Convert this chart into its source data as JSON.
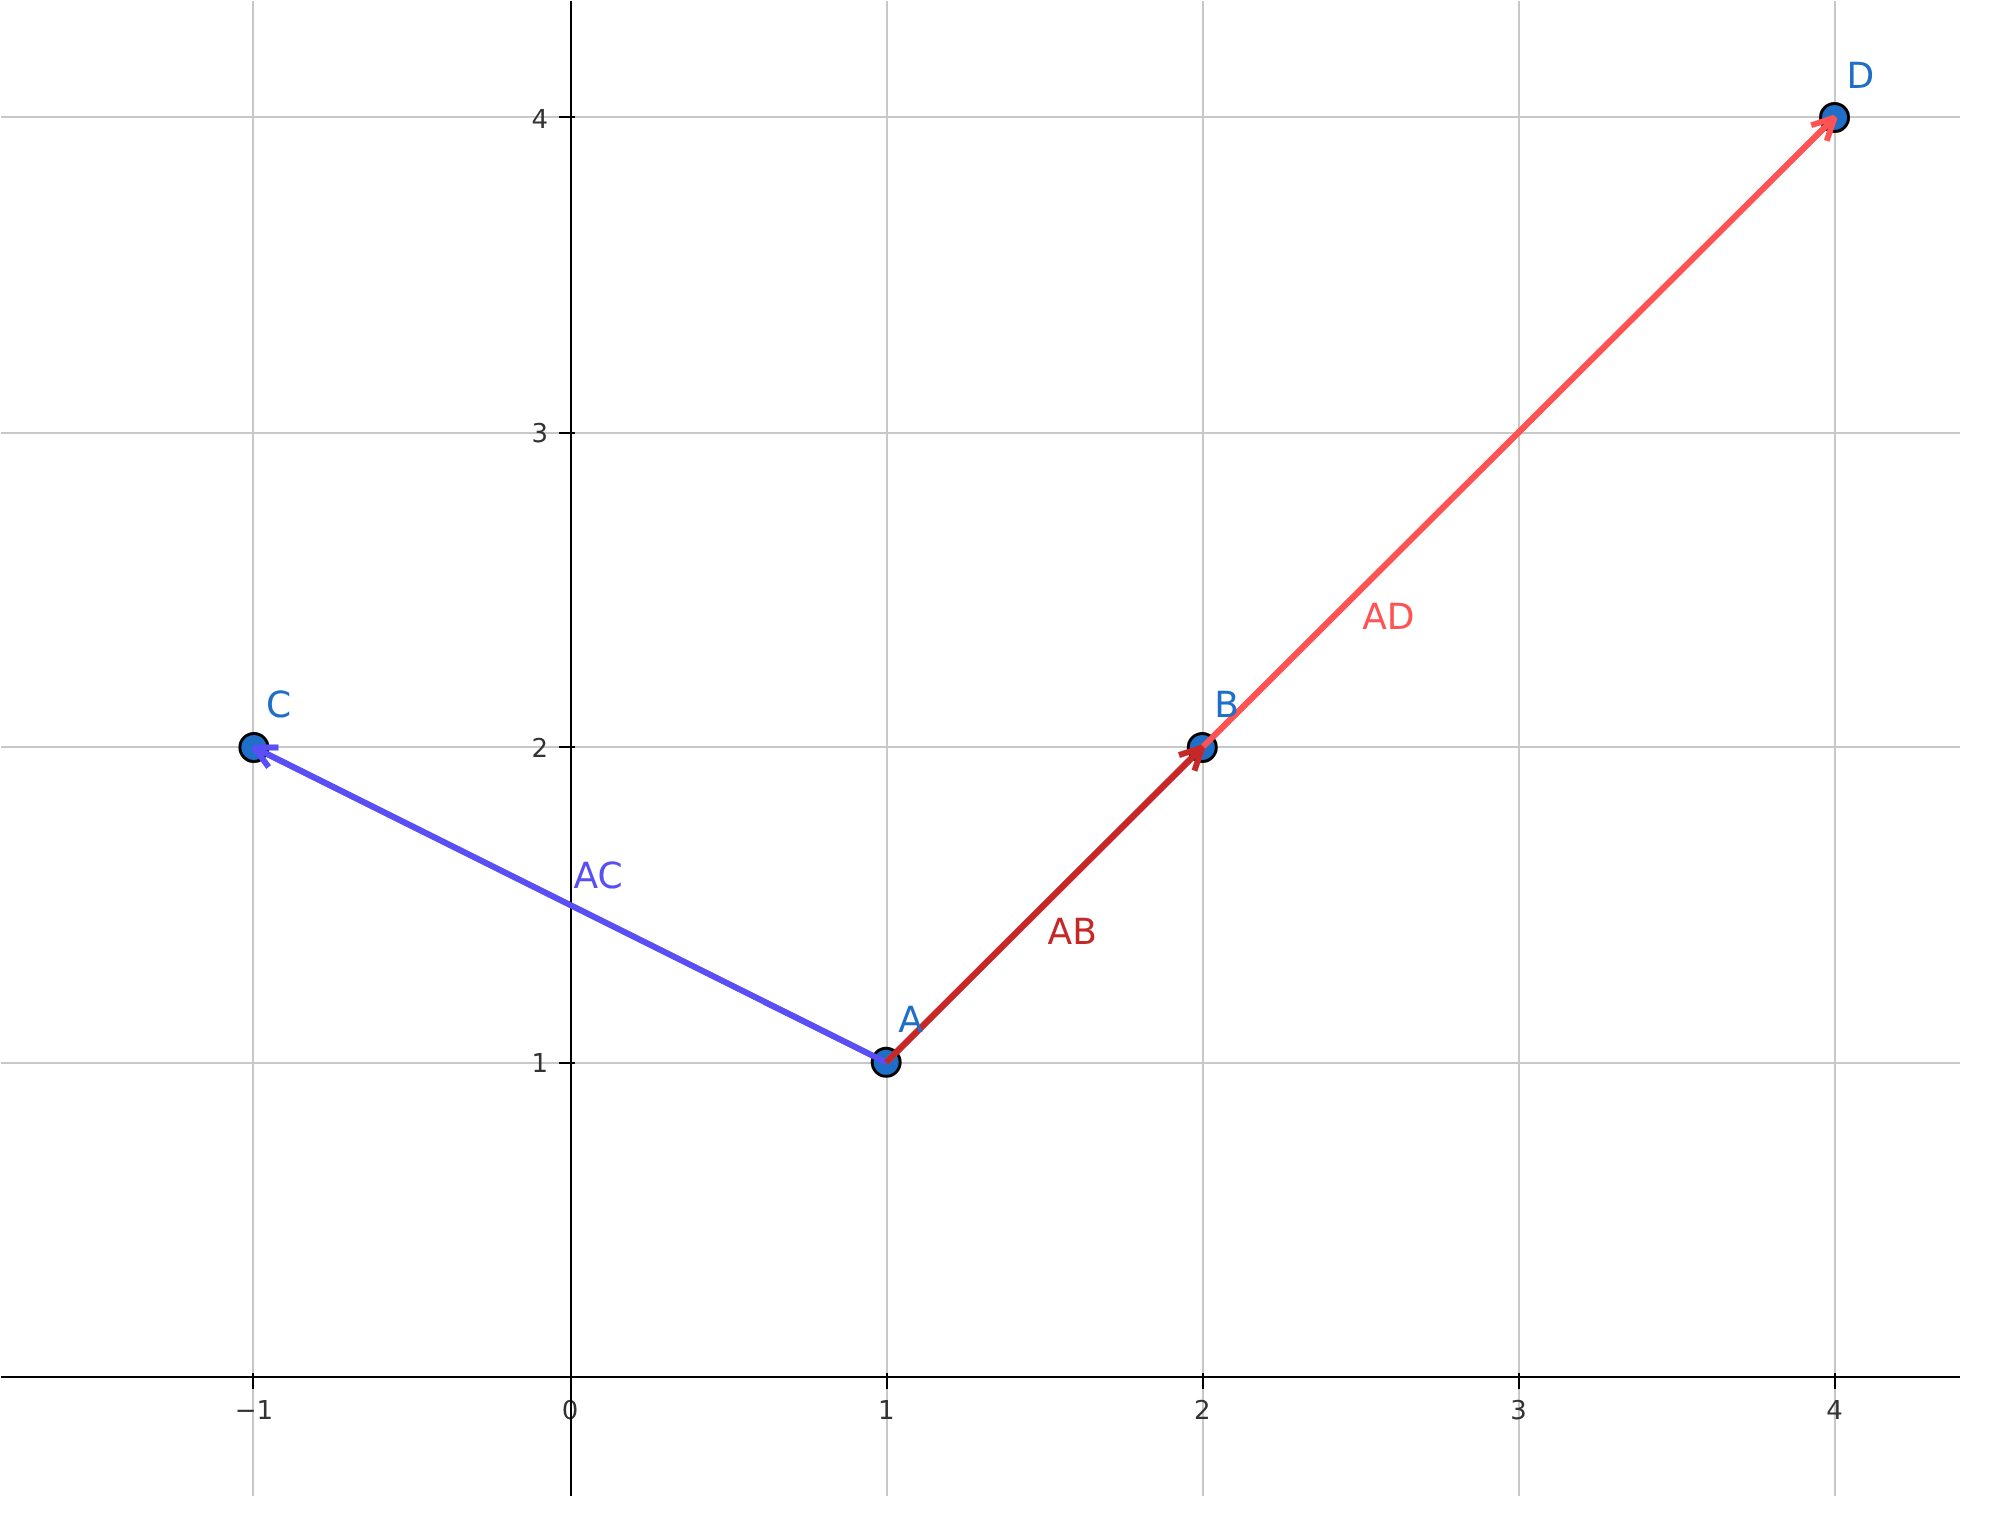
{
  "chart_data": {
    "type": "line",
    "xlim": [
      -1.8,
      4.4
    ],
    "ylim": [
      -0.38,
      4.37
    ],
    "xticks": [
      -1,
      0,
      1,
      2,
      3,
      4
    ],
    "yticks": [
      1,
      2,
      3,
      4
    ],
    "grid": true,
    "legend": false,
    "series": [
      {
        "name": "AB",
        "color": "#c62828",
        "x": [
          1,
          2
        ],
        "values": [
          1,
          2
        ]
      },
      {
        "name": "AC",
        "color": "#5a4ff5",
        "x": [
          1,
          -1
        ],
        "values": [
          1,
          2
        ]
      },
      {
        "name": "AD",
        "color": "#ff5252",
        "x": [
          1,
          4
        ],
        "values": [
          1,
          4
        ]
      },
      {
        "type": "scatter",
        "marker": "circle",
        "color": "#1f6fc8",
        "x": [
          1,
          2,
          -1,
          4
        ],
        "values": [
          1,
          2,
          2,
          4
        ]
      }
    ],
    "annotations": [
      {
        "text": "A",
        "x": 1,
        "y": 1
      },
      {
        "text": "B",
        "x": 2,
        "y": 2
      },
      {
        "text": "C",
        "x": -1,
        "y": 2
      },
      {
        "text": "D",
        "x": 4,
        "y": 4
      }
    ]
  }
}
